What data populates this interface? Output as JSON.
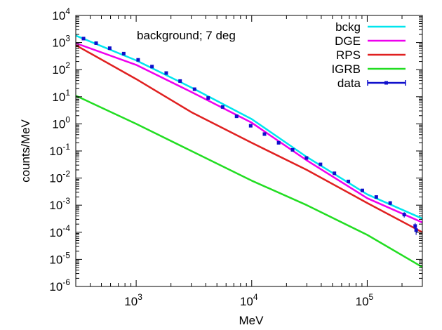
{
  "chart_data": {
    "type": "line",
    "annotation": "background; 7 deg",
    "xlabel": "MeV",
    "ylabel": "counts/MeV",
    "xscale": "log",
    "yscale": "log",
    "xlim": [
      300,
      300000
    ],
    "ylim": [
      1e-06,
      10000
    ],
    "x_ticks": [
      {
        "base": "10",
        "exp": "3",
        "value": 1000
      },
      {
        "base": "10",
        "exp": "4",
        "value": 10000
      },
      {
        "base": "10",
        "exp": "5",
        "value": 100000
      }
    ],
    "y_ticks": [
      {
        "base": "10",
        "exp": "-6",
        "value": 1e-06
      },
      {
        "base": "10",
        "exp": "-5",
        "value": 1e-05
      },
      {
        "base": "10",
        "exp": "-4",
        "value": 0.0001
      },
      {
        "base": "10",
        "exp": "-3",
        "value": 0.001
      },
      {
        "base": "10",
        "exp": "-2",
        "value": 0.01
      },
      {
        "base": "10",
        "exp": "-1",
        "value": 0.1
      },
      {
        "base": "10",
        "exp": "0",
        "value": 1
      },
      {
        "base": "10",
        "exp": "1",
        "value": 10
      },
      {
        "base": "10",
        "exp": "2",
        "value": 100
      },
      {
        "base": "10",
        "exp": "3",
        "value": 1000
      },
      {
        "base": "10",
        "exp": "4",
        "value": 10000
      }
    ],
    "legend_position": "top-right",
    "series": [
      {
        "name": "bckg",
        "color": "#00e5ee",
        "kind": "line",
        "x": [
          300,
          1000,
          3000,
          10000,
          30000,
          100000,
          300000
        ],
        "y": [
          1800,
          220,
          22,
          1.5,
          0.06,
          0.0025,
          0.00032
        ]
      },
      {
        "name": "DGE",
        "color": "#ee00ee",
        "kind": "line",
        "x": [
          300,
          1000,
          3000,
          10000,
          30000,
          100000,
          300000
        ],
        "y": [
          950,
          150,
          15,
          1.1,
          0.045,
          0.0018,
          0.00023
        ]
      },
      {
        "name": "RPS",
        "color": "#e02020",
        "kind": "line",
        "x": [
          300,
          1000,
          3000,
          10000,
          30000,
          100000,
          300000
        ],
        "y": [
          800,
          45,
          2.7,
          0.2,
          0.02,
          0.0012,
          0.0001
        ]
      },
      {
        "name": "IGRB",
        "color": "#22dd22",
        "kind": "line",
        "x": [
          300,
          1000,
          3000,
          10000,
          30000,
          100000,
          300000
        ],
        "y": [
          11,
          1,
          0.1,
          0.008,
          0.001,
          8e-05,
          5.2e-06
        ]
      },
      {
        "name": "data",
        "color": "#1010cc",
        "kind": "points",
        "x": [
          350,
          450,
          590,
          780,
          1040,
          1370,
          1820,
          2400,
          3200,
          4200,
          5600,
          7400,
          9800,
          12900,
          17100,
          22600,
          29800,
          39400,
          52000,
          68700,
          90700,
          119800,
          158000,
          209000,
          260000,
          265000
        ],
        "y": [
          1400,
          950,
          620,
          390,
          230,
          130,
          75,
          38,
          19,
          9,
          4.2,
          1.9,
          0.85,
          0.42,
          0.2,
          0.11,
          0.055,
          0.032,
          0.015,
          0.0075,
          0.0035,
          0.002,
          0.0012,
          0.00045,
          0.00017,
          0.00012
        ],
        "yerr": [
          90,
          60,
          35,
          20,
          12,
          7,
          4,
          2,
          1,
          0.5,
          0.22,
          0.1,
          0.05,
          0.025,
          0.012,
          0.007,
          0.004,
          0.0025,
          0.0012,
          0.0007,
          0.0004,
          0.00025,
          0.0002,
          0.0001,
          5e-05,
          4e-05
        ]
      }
    ]
  }
}
